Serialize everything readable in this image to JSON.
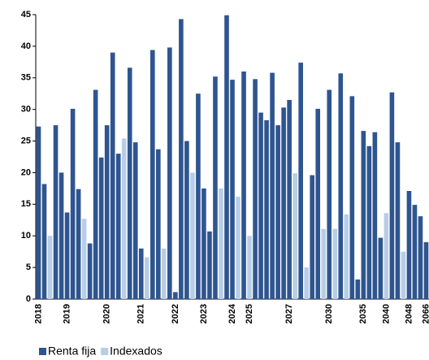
{
  "chart_data": {
    "type": "bar",
    "categories": [
      "2018",
      null,
      null,
      null,
      null,
      "2019",
      null,
      null,
      null,
      null,
      null,
      null,
      "2020",
      null,
      null,
      null,
      null,
      null,
      "2021",
      null,
      null,
      null,
      null,
      null,
      "2022",
      null,
      null,
      null,
      null,
      "2023",
      null,
      null,
      null,
      null,
      "2024",
      null,
      null,
      "2025",
      null,
      null,
      null,
      null,
      null,
      null,
      "2027",
      null,
      null,
      null,
      null,
      null,
      null,
      "2030",
      null,
      null,
      null,
      null,
      null,
      "2035",
      null,
      null,
      null,
      "2040",
      null,
      null,
      null,
      "2048",
      null,
      null,
      "2066"
    ],
    "series": [
      {
        "name": "Renta fija",
        "color": "#2e5590",
        "values": [
          27.3,
          18.2,
          null,
          27.5,
          20,
          13.7,
          30.1,
          17.4,
          null,
          8.8,
          33.1,
          22.4,
          27.5,
          39.0,
          23.0,
          null,
          36.6,
          24.8,
          8.0,
          null,
          39.4,
          23.7,
          null,
          39.8,
          1.1,
          44.3,
          25.0,
          null,
          32.5,
          17.5,
          10.7,
          35.2,
          null,
          44.9,
          34.7,
          null,
          36,
          null,
          34.8,
          29.5,
          28.3,
          35.8,
          27.5,
          30.3,
          31.5,
          null,
          37.4,
          null,
          19.6,
          30.1,
          null,
          33.1,
          null,
          35.7,
          null,
          32.1,
          3.1,
          26.6,
          24.2,
          26.4,
          9.7,
          null,
          32.7,
          24.8,
          null,
          17.1,
          14.9,
          13.1,
          9.0
        ]
      },
      {
        "name": "Indexados",
        "color": "#b8cde6",
        "values": [
          null,
          null,
          10.0,
          null,
          null,
          null,
          null,
          null,
          12.7,
          null,
          null,
          null,
          null,
          null,
          null,
          25.4,
          null,
          null,
          null,
          6.6,
          null,
          null,
          8.0,
          null,
          null,
          null,
          null,
          20.0,
          null,
          null,
          null,
          null,
          17.5,
          null,
          null,
          16.2,
          null,
          10,
          null,
          null,
          null,
          null,
          null,
          null,
          null,
          19.9,
          null,
          5.0,
          null,
          null,
          11.1,
          null,
          11.1,
          null,
          13.4,
          null,
          null,
          null,
          null,
          null,
          null,
          13.6,
          null,
          null,
          7.5,
          null,
          null,
          null,
          null
        ]
      }
    ],
    "ylim": [
      0,
      45
    ],
    "yticks": [
      0,
      5,
      10,
      15,
      20,
      25,
      30,
      35,
      40,
      45
    ],
    "legend": "bottom"
  }
}
